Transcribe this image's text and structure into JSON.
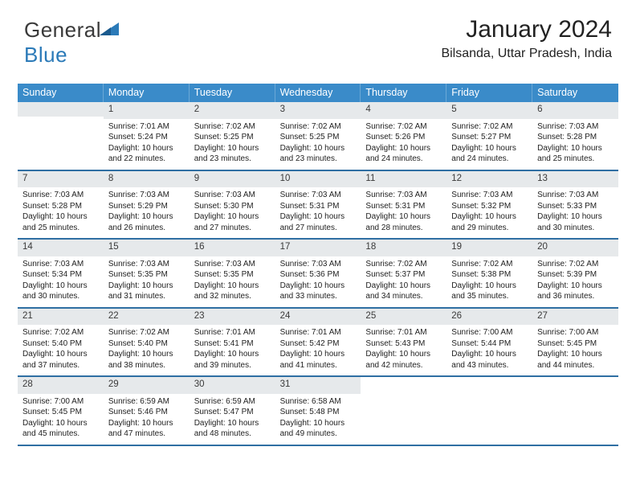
{
  "brand": {
    "part1": "General",
    "part2": "Blue"
  },
  "header": {
    "month": "January 2024",
    "location": "Bilsanda, Uttar Pradesh, India"
  },
  "colors": {
    "headerBlue": "#3a8bc9",
    "borderBlue": "#2f6fa3",
    "daynumBg": "#e6e9eb"
  },
  "dayLabels": [
    "Sunday",
    "Monday",
    "Tuesday",
    "Wednesday",
    "Thursday",
    "Friday",
    "Saturday"
  ],
  "startOffset": 1,
  "days": [
    {
      "n": "1",
      "sr": "7:01 AM",
      "ss": "5:24 PM",
      "dl": "10 hours and 22 minutes."
    },
    {
      "n": "2",
      "sr": "7:02 AM",
      "ss": "5:25 PM",
      "dl": "10 hours and 23 minutes."
    },
    {
      "n": "3",
      "sr": "7:02 AM",
      "ss": "5:25 PM",
      "dl": "10 hours and 23 minutes."
    },
    {
      "n": "4",
      "sr": "7:02 AM",
      "ss": "5:26 PM",
      "dl": "10 hours and 24 minutes."
    },
    {
      "n": "5",
      "sr": "7:02 AM",
      "ss": "5:27 PM",
      "dl": "10 hours and 24 minutes."
    },
    {
      "n": "6",
      "sr": "7:03 AM",
      "ss": "5:28 PM",
      "dl": "10 hours and 25 minutes."
    },
    {
      "n": "7",
      "sr": "7:03 AM",
      "ss": "5:28 PM",
      "dl": "10 hours and 25 minutes."
    },
    {
      "n": "8",
      "sr": "7:03 AM",
      "ss": "5:29 PM",
      "dl": "10 hours and 26 minutes."
    },
    {
      "n": "9",
      "sr": "7:03 AM",
      "ss": "5:30 PM",
      "dl": "10 hours and 27 minutes."
    },
    {
      "n": "10",
      "sr": "7:03 AM",
      "ss": "5:31 PM",
      "dl": "10 hours and 27 minutes."
    },
    {
      "n": "11",
      "sr": "7:03 AM",
      "ss": "5:31 PM",
      "dl": "10 hours and 28 minutes."
    },
    {
      "n": "12",
      "sr": "7:03 AM",
      "ss": "5:32 PM",
      "dl": "10 hours and 29 minutes."
    },
    {
      "n": "13",
      "sr": "7:03 AM",
      "ss": "5:33 PM",
      "dl": "10 hours and 30 minutes."
    },
    {
      "n": "14",
      "sr": "7:03 AM",
      "ss": "5:34 PM",
      "dl": "10 hours and 30 minutes."
    },
    {
      "n": "15",
      "sr": "7:03 AM",
      "ss": "5:35 PM",
      "dl": "10 hours and 31 minutes."
    },
    {
      "n": "16",
      "sr": "7:03 AM",
      "ss": "5:35 PM",
      "dl": "10 hours and 32 minutes."
    },
    {
      "n": "17",
      "sr": "7:03 AM",
      "ss": "5:36 PM",
      "dl": "10 hours and 33 minutes."
    },
    {
      "n": "18",
      "sr": "7:02 AM",
      "ss": "5:37 PM",
      "dl": "10 hours and 34 minutes."
    },
    {
      "n": "19",
      "sr": "7:02 AM",
      "ss": "5:38 PM",
      "dl": "10 hours and 35 minutes."
    },
    {
      "n": "20",
      "sr": "7:02 AM",
      "ss": "5:39 PM",
      "dl": "10 hours and 36 minutes."
    },
    {
      "n": "21",
      "sr": "7:02 AM",
      "ss": "5:40 PM",
      "dl": "10 hours and 37 minutes."
    },
    {
      "n": "22",
      "sr": "7:02 AM",
      "ss": "5:40 PM",
      "dl": "10 hours and 38 minutes."
    },
    {
      "n": "23",
      "sr": "7:01 AM",
      "ss": "5:41 PM",
      "dl": "10 hours and 39 minutes."
    },
    {
      "n": "24",
      "sr": "7:01 AM",
      "ss": "5:42 PM",
      "dl": "10 hours and 41 minutes."
    },
    {
      "n": "25",
      "sr": "7:01 AM",
      "ss": "5:43 PM",
      "dl": "10 hours and 42 minutes."
    },
    {
      "n": "26",
      "sr": "7:00 AM",
      "ss": "5:44 PM",
      "dl": "10 hours and 43 minutes."
    },
    {
      "n": "27",
      "sr": "7:00 AM",
      "ss": "5:45 PM",
      "dl": "10 hours and 44 minutes."
    },
    {
      "n": "28",
      "sr": "7:00 AM",
      "ss": "5:45 PM",
      "dl": "10 hours and 45 minutes."
    },
    {
      "n": "29",
      "sr": "6:59 AM",
      "ss": "5:46 PM",
      "dl": "10 hours and 47 minutes."
    },
    {
      "n": "30",
      "sr": "6:59 AM",
      "ss": "5:47 PM",
      "dl": "10 hours and 48 minutes."
    },
    {
      "n": "31",
      "sr": "6:58 AM",
      "ss": "5:48 PM",
      "dl": "10 hours and 49 minutes."
    }
  ],
  "labels": {
    "sunrise": "Sunrise: ",
    "sunset": "Sunset: ",
    "daylight": "Daylight: "
  }
}
